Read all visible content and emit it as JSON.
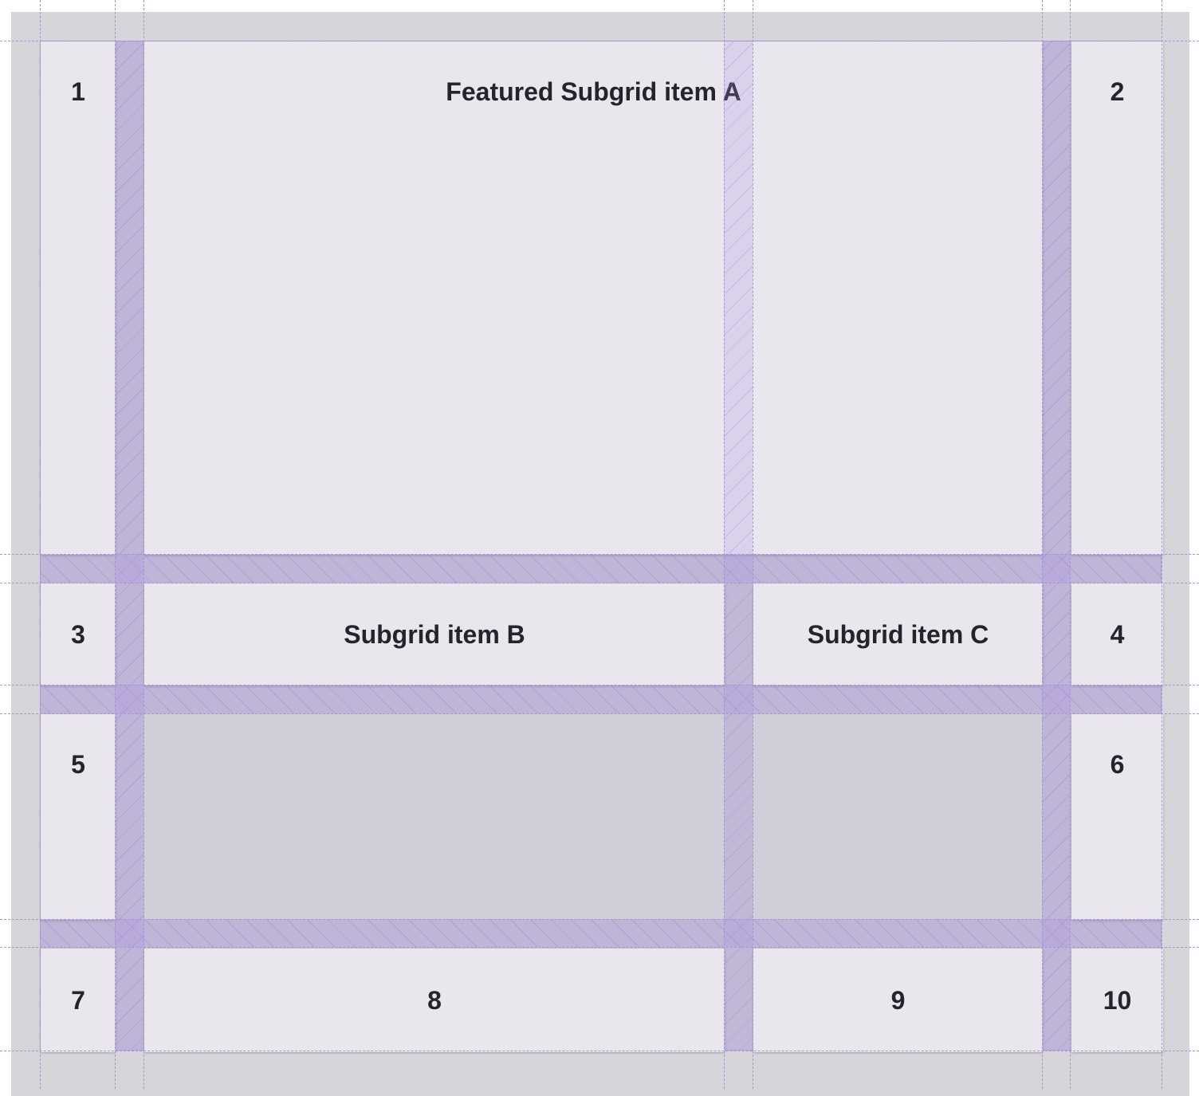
{
  "items": {
    "n1": "1",
    "featured": "Featured Subgrid item A",
    "n2": "2",
    "n3": "3",
    "b": "Subgrid item B",
    "c": "Subgrid item C",
    "n4": "4",
    "n5": "5",
    "n6": "6",
    "n7": "7",
    "n8": "8",
    "n9": "9",
    "n10": "10"
  },
  "colors": {
    "cell": "#e9e6ee",
    "overlay": "#a893d6",
    "background": "#d6d6da"
  }
}
